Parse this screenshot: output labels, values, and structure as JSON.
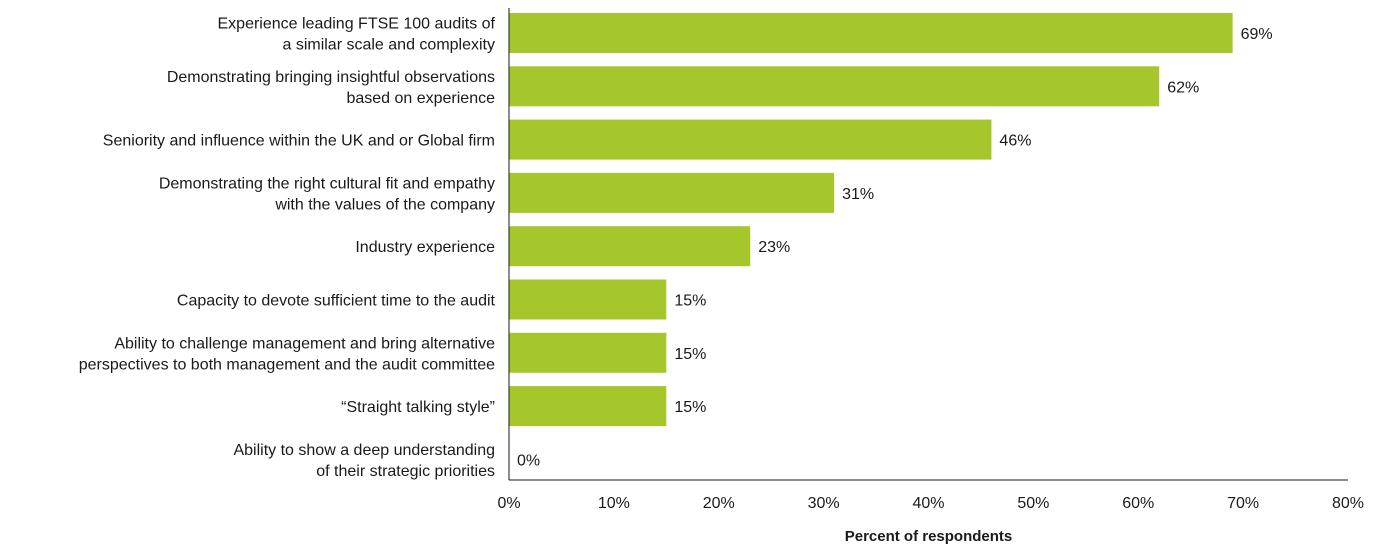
{
  "chart_data": {
    "type": "bar",
    "orientation": "horizontal",
    "categories": [
      [
        "Experience leading FTSE 100 audits of",
        "a similar scale and complexity"
      ],
      [
        "Demonstrating bringing insightful observations",
        "based on experience"
      ],
      [
        "Seniority and influence within the UK and or Global firm"
      ],
      [
        "Demonstrating the right cultural fit and empathy",
        "with the values of the company"
      ],
      [
        "Industry experience"
      ],
      [
        "Capacity to devote sufficient time to the audit"
      ],
      [
        "Ability to challenge management and bring alternative",
        "perspectives to both management and the audit committee"
      ],
      [
        "“Straight talking style”"
      ],
      [
        "Ability to show a deep understanding",
        "of their strategic priorities"
      ]
    ],
    "values": [
      69,
      62,
      46,
      31,
      23,
      15,
      15,
      15,
      0
    ],
    "value_labels": [
      "69%",
      "62%",
      "46%",
      "31%",
      "23%",
      "15%",
      "15%",
      "15%",
      "0%"
    ],
    "xlim": [
      0,
      80
    ],
    "x_ticks": [
      0,
      10,
      20,
      30,
      40,
      50,
      60,
      70,
      80
    ],
    "x_tick_labels": [
      "0%",
      "10%",
      "20%",
      "30%",
      "40%",
      "50%",
      "60%",
      "70%",
      "80%"
    ],
    "xlabel": "Percent of respondents",
    "ylabel": "",
    "title": "",
    "grid": false,
    "legend": "none",
    "bar_color": "#a5c72b"
  }
}
